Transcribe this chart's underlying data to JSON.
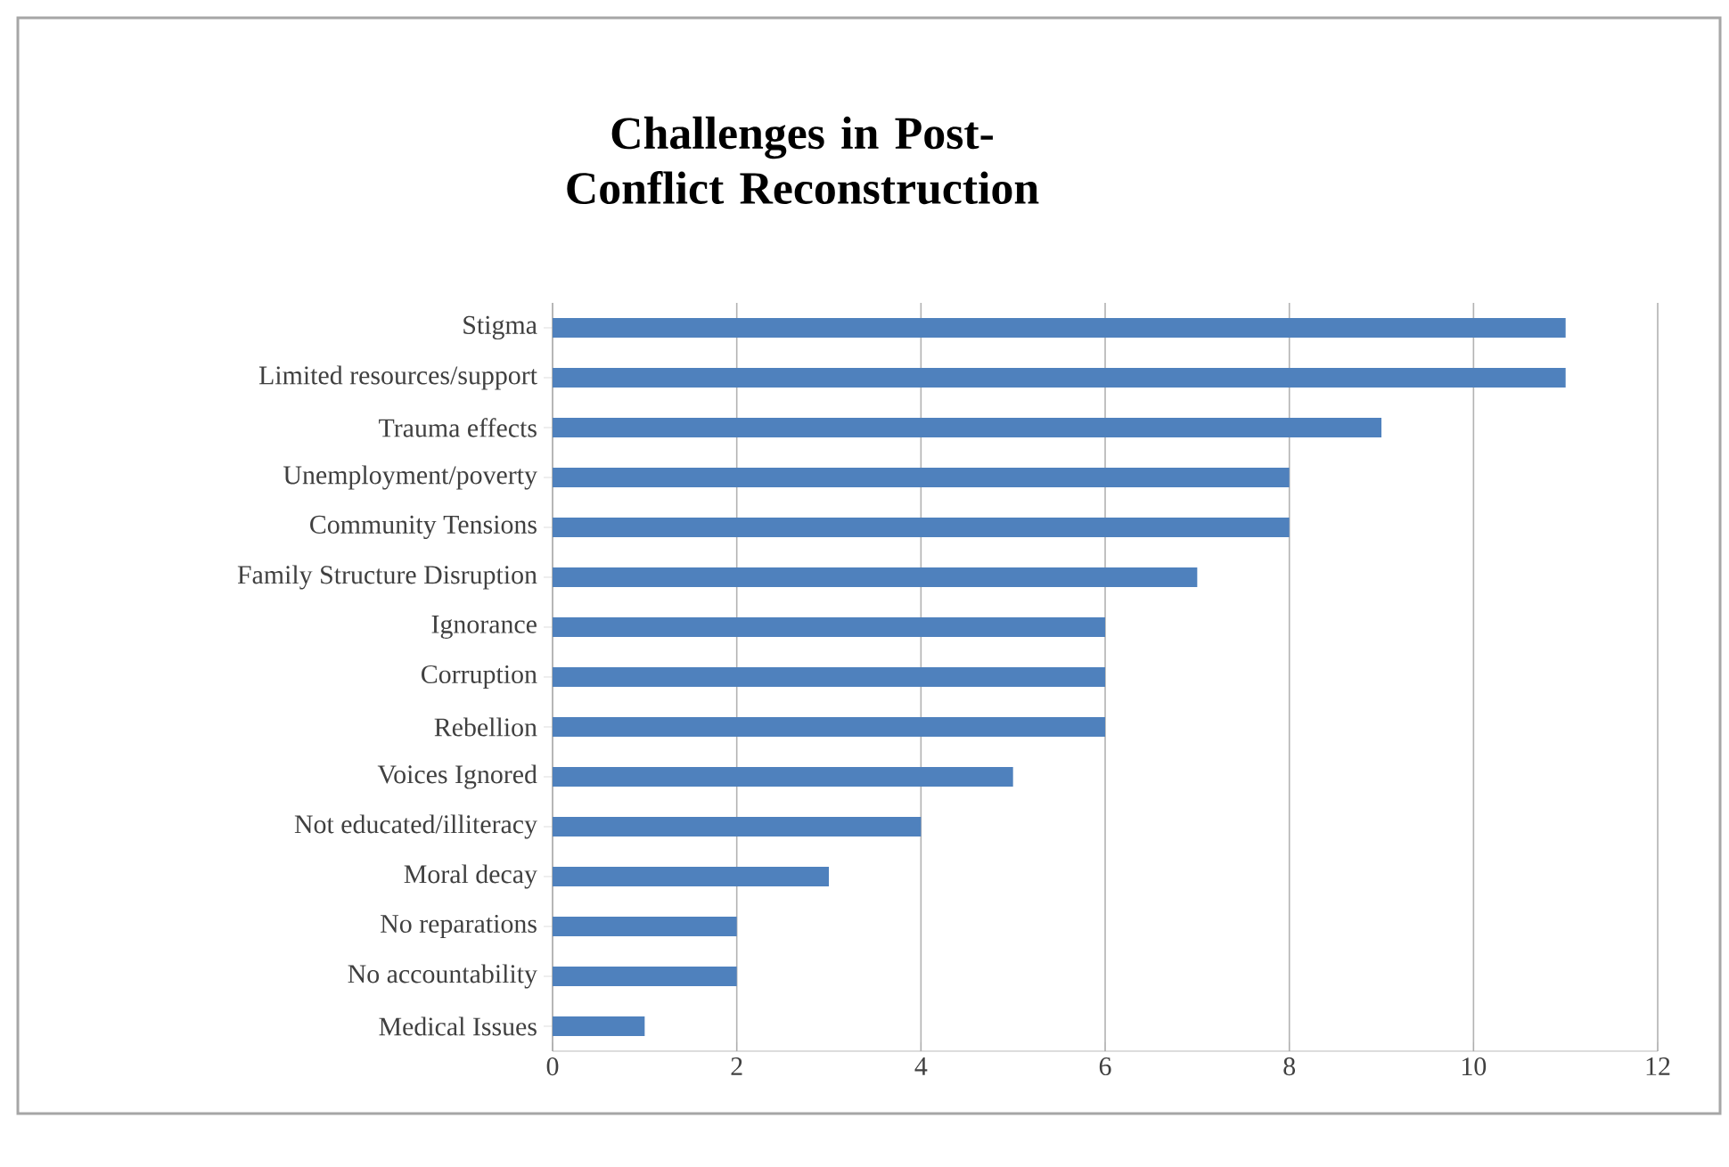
{
  "chart_data": {
    "type": "bar",
    "orientation": "horizontal",
    "title": "Challenges in Post-Conflict Reconstruction",
    "categories": [
      "Stigma",
      "Limited resources/support",
      "Trauma effects",
      "Unemployment/poverty",
      "Community Tensions",
      "Family Structure Disruption",
      "Ignorance",
      "Corruption",
      "Rebellion",
      "Voices Ignored",
      "Not educated/illiteracy",
      "Moral decay",
      "No reparations",
      "No accountability",
      "Medical Issues"
    ],
    "values": [
      11,
      11,
      9,
      8,
      8,
      7,
      6,
      6,
      6,
      5,
      4,
      3,
      2,
      2,
      1
    ],
    "color": "#4f81bd",
    "xlim": [
      0,
      12
    ],
    "xticks": [
      0,
      2,
      4,
      6,
      8,
      10,
      12
    ],
    "grid": "x"
  }
}
